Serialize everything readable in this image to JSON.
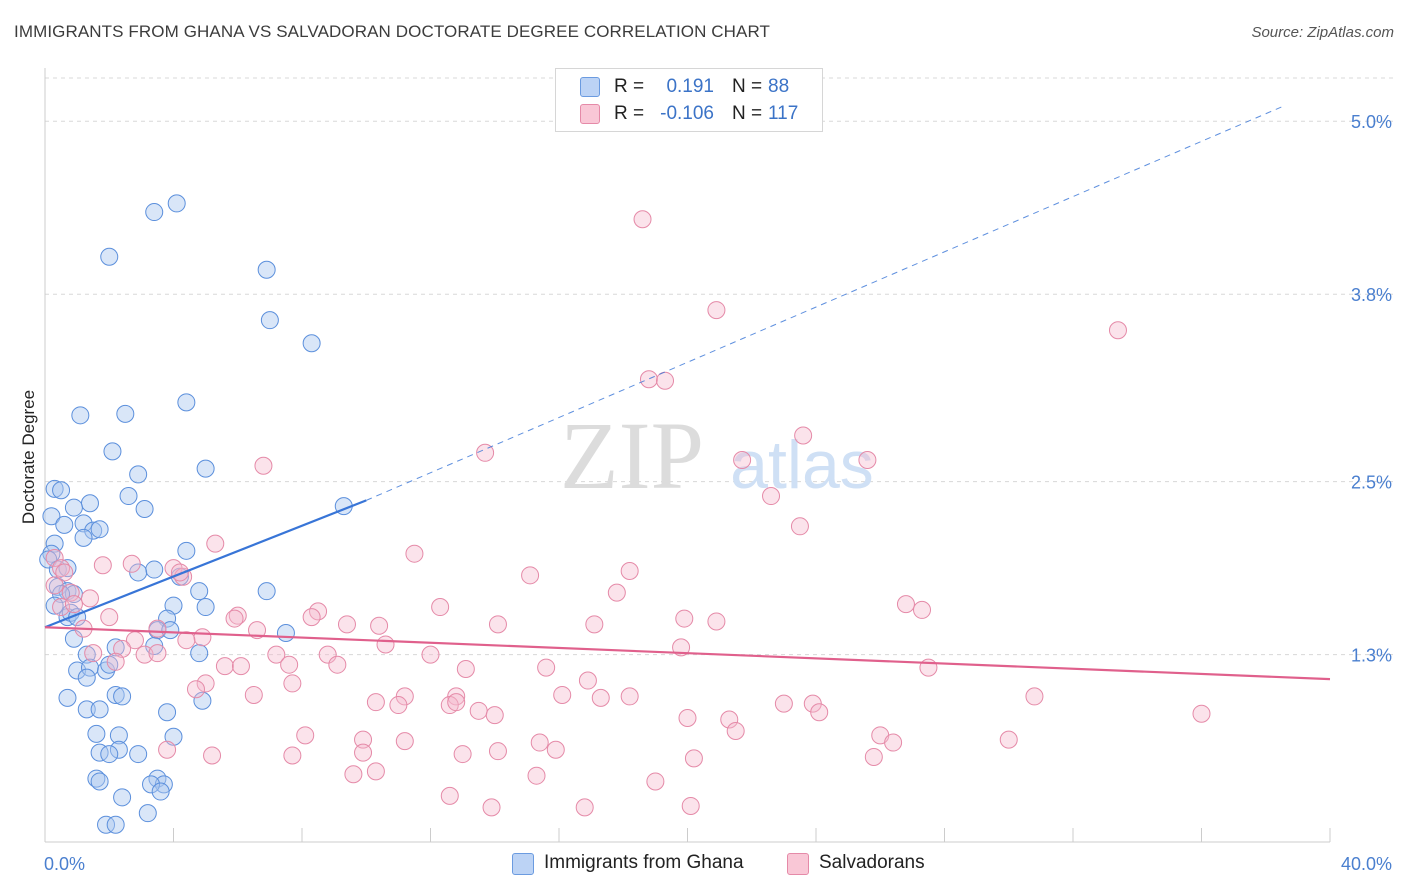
{
  "title": "IMMIGRANTS FROM GHANA VS SALVADORAN DOCTORATE DEGREE CORRELATION CHART",
  "source": "Source: ZipAtlas.com",
  "watermark": {
    "zip": "ZIP",
    "atlas": "atlas"
  },
  "legend": {
    "r_label": "R =",
    "n_label": "N =",
    "series": [
      {
        "name": "Immigrants from Ghana",
        "r": "0.191",
        "n": "88",
        "fill": "#bcd3f5",
        "stroke": "#6b9be0"
      },
      {
        "name": "Salvadorans",
        "r": "-0.106",
        "n": "117",
        "fill": "#f9c7d6",
        "stroke": "#e58aa8"
      }
    ]
  },
  "chart_data": {
    "type": "scatter",
    "title": "IMMIGRANTS FROM GHANA VS SALVADORAN DOCTORATE DEGREE CORRELATION CHART",
    "xlabel": "",
    "ylabel": "Doctorate Degree",
    "xlim": [
      0,
      40
    ],
    "ylim": [
      0,
      5.3
    ],
    "x_tick_labels": {
      "left": "0.0%",
      "right": "40.0%"
    },
    "y_ticks": [
      {
        "value": 1.3,
        "label": "1.3%"
      },
      {
        "value": 2.5,
        "label": "2.5%"
      },
      {
        "value": 3.8,
        "label": "3.8%"
      },
      {
        "value": 5.0,
        "label": "5.0%"
      }
    ],
    "colors": {
      "ghana": "#3875d7",
      "salvadoran": "#e0608c",
      "grid": "#d8d8d8"
    },
    "trendlines": [
      {
        "series": "Immigrants from Ghana",
        "x_solid": [
          0,
          10
        ],
        "y_solid": [
          1.49,
          2.37
        ],
        "x_dashed": [
          10,
          38.5
        ],
        "y_dashed": [
          2.37,
          5.1
        ]
      },
      {
        "series": "Salvadorans",
        "x": [
          0,
          40
        ],
        "y": [
          1.49,
          1.13
        ]
      }
    ],
    "series": [
      {
        "name": "Immigrants from Ghana",
        "points": [
          [
            4.1,
            4.43
          ],
          [
            3.4,
            4.37
          ],
          [
            2.0,
            4.06
          ],
          [
            6.9,
            3.97
          ],
          [
            7.0,
            3.62
          ],
          [
            8.3,
            3.46
          ],
          [
            1.1,
            2.96
          ],
          [
            2.5,
            2.97
          ],
          [
            4.4,
            3.05
          ],
          [
            2.1,
            2.71
          ],
          [
            5.0,
            2.59
          ],
          [
            2.9,
            2.55
          ],
          [
            0.3,
            2.45
          ],
          [
            0.5,
            2.44
          ],
          [
            2.6,
            2.4
          ],
          [
            1.4,
            2.35
          ],
          [
            0.2,
            2.26
          ],
          [
            0.9,
            2.32
          ],
          [
            3.1,
            2.31
          ],
          [
            9.3,
            2.33
          ],
          [
            1.2,
            2.21
          ],
          [
            0.6,
            2.2
          ],
          [
            1.5,
            2.16
          ],
          [
            1.7,
            2.17
          ],
          [
            1.2,
            2.11
          ],
          [
            0.3,
            2.07
          ],
          [
            0.2,
            2.0
          ],
          [
            4.4,
            2.02
          ],
          [
            0.1,
            1.96
          ],
          [
            0.4,
            1.89
          ],
          [
            0.7,
            1.9
          ],
          [
            3.4,
            1.89
          ],
          [
            2.9,
            1.87
          ],
          [
            4.2,
            1.84
          ],
          [
            0.4,
            1.77
          ],
          [
            0.7,
            1.74
          ],
          [
            0.9,
            1.72
          ],
          [
            0.5,
            1.72
          ],
          [
            6.9,
            1.74
          ],
          [
            4.8,
            1.74
          ],
          [
            0.3,
            1.64
          ],
          [
            4.0,
            1.64
          ],
          [
            5.0,
            1.63
          ],
          [
            0.7,
            1.56
          ],
          [
            0.8,
            1.59
          ],
          [
            1.0,
            1.56
          ],
          [
            3.8,
            1.55
          ],
          [
            3.5,
            1.47
          ],
          [
            3.9,
            1.47
          ],
          [
            7.5,
            1.45
          ],
          [
            0.9,
            1.41
          ],
          [
            2.2,
            1.35
          ],
          [
            3.4,
            1.36
          ],
          [
            1.3,
            1.3
          ],
          [
            4.8,
            1.31
          ],
          [
            1.0,
            1.19
          ],
          [
            1.4,
            1.21
          ],
          [
            1.9,
            1.19
          ],
          [
            2.0,
            1.23
          ],
          [
            1.3,
            1.14
          ],
          [
            0.7,
            1.0
          ],
          [
            2.2,
            1.02
          ],
          [
            2.4,
            1.01
          ],
          [
            4.9,
            0.98
          ],
          [
            1.3,
            0.92
          ],
          [
            1.7,
            0.92
          ],
          [
            3.8,
            0.9
          ],
          [
            1.6,
            0.75
          ],
          [
            2.3,
            0.74
          ],
          [
            4.0,
            0.73
          ],
          [
            1.7,
            0.62
          ],
          [
            2.3,
            0.64
          ],
          [
            2.9,
            0.61
          ],
          [
            2.0,
            0.61
          ],
          [
            1.6,
            0.44
          ],
          [
            1.7,
            0.42
          ],
          [
            3.5,
            0.44
          ],
          [
            3.7,
            0.4
          ],
          [
            3.3,
            0.4
          ],
          [
            3.6,
            0.35
          ],
          [
            2.4,
            0.31
          ],
          [
            3.2,
            0.2
          ],
          [
            1.9,
            0.12
          ],
          [
            2.2,
            0.12
          ]
        ]
      },
      {
        "name": "Salvadorans",
        "points": [
          [
            18.6,
            4.32
          ],
          [
            20.9,
            3.69
          ],
          [
            33.4,
            3.55
          ],
          [
            18.8,
            3.21
          ],
          [
            19.3,
            3.2
          ],
          [
            23.6,
            2.82
          ],
          [
            13.7,
            2.7
          ],
          [
            21.7,
            2.65
          ],
          [
            6.8,
            2.61
          ],
          [
            25.6,
            2.65
          ],
          [
            22.6,
            2.4
          ],
          [
            23.5,
            2.19
          ],
          [
            5.3,
            2.07
          ],
          [
            11.5,
            2.0
          ],
          [
            0.3,
            1.97
          ],
          [
            1.8,
            1.92
          ],
          [
            2.7,
            1.93
          ],
          [
            0.5,
            1.9
          ],
          [
            0.6,
            1.87
          ],
          [
            4.0,
            1.9
          ],
          [
            4.3,
            1.84
          ],
          [
            4.2,
            1.87
          ],
          [
            15.1,
            1.85
          ],
          [
            18.2,
            1.88
          ],
          [
            0.3,
            1.78
          ],
          [
            0.8,
            1.73
          ],
          [
            1.4,
            1.69
          ],
          [
            17.8,
            1.73
          ],
          [
            0.5,
            1.63
          ],
          [
            0.9,
            1.65
          ],
          [
            12.3,
            1.63
          ],
          [
            26.8,
            1.65
          ],
          [
            27.3,
            1.61
          ],
          [
            8.5,
            1.6
          ],
          [
            8.3,
            1.56
          ],
          [
            6.0,
            1.57
          ],
          [
            5.9,
            1.55
          ],
          [
            2.0,
            1.56
          ],
          [
            19.9,
            1.55
          ],
          [
            20.9,
            1.53
          ],
          [
            9.4,
            1.51
          ],
          [
            10.4,
            1.5
          ],
          [
            14.1,
            1.51
          ],
          [
            17.1,
            1.51
          ],
          [
            1.2,
            1.48
          ],
          [
            3.5,
            1.48
          ],
          [
            6.6,
            1.47
          ],
          [
            4.9,
            1.42
          ],
          [
            4.4,
            1.4
          ],
          [
            2.8,
            1.4
          ],
          [
            10.6,
            1.37
          ],
          [
            19.8,
            1.35
          ],
          [
            1.5,
            1.31
          ],
          [
            3.1,
            1.3
          ],
          [
            7.2,
            1.3
          ],
          [
            8.8,
            1.3
          ],
          [
            12.0,
            1.3
          ],
          [
            2.4,
            1.34
          ],
          [
            5.6,
            1.22
          ],
          [
            6.1,
            1.22
          ],
          [
            7.6,
            1.23
          ],
          [
            9.1,
            1.23
          ],
          [
            3.5,
            1.31
          ],
          [
            2.2,
            1.25
          ],
          [
            13.1,
            1.2
          ],
          [
            15.6,
            1.21
          ],
          [
            27.5,
            1.21
          ],
          [
            16.9,
            1.12
          ],
          [
            5.0,
            1.1
          ],
          [
            4.7,
            1.06
          ],
          [
            6.5,
            1.02
          ],
          [
            7.7,
            1.1
          ],
          [
            11.2,
            1.01
          ],
          [
            12.8,
            1.01
          ],
          [
            16.1,
            1.02
          ],
          [
            17.3,
            1.0
          ],
          [
            18.2,
            1.01
          ],
          [
            10.3,
            0.97
          ],
          [
            11.0,
            0.95
          ],
          [
            12.6,
            0.95
          ],
          [
            13.5,
            0.91
          ],
          [
            14.0,
            0.88
          ],
          [
            23.0,
            0.96
          ],
          [
            23.9,
            0.96
          ],
          [
            24.1,
            0.9
          ],
          [
            30.8,
            1.01
          ],
          [
            36.0,
            0.89
          ],
          [
            12.8,
            0.97
          ],
          [
            20.0,
            0.86
          ],
          [
            21.3,
            0.85
          ],
          [
            8.1,
            0.74
          ],
          [
            9.9,
            0.71
          ],
          [
            11.2,
            0.7
          ],
          [
            15.4,
            0.69
          ],
          [
            21.5,
            0.77
          ],
          [
            26.0,
            0.74
          ],
          [
            26.4,
            0.69
          ],
          [
            30.0,
            0.71
          ],
          [
            3.8,
            0.64
          ],
          [
            5.2,
            0.6
          ],
          [
            7.7,
            0.6
          ],
          [
            9.9,
            0.62
          ],
          [
            13.0,
            0.61
          ],
          [
            14.1,
            0.63
          ],
          [
            15.9,
            0.64
          ],
          [
            20.2,
            0.58
          ],
          [
            25.8,
            0.59
          ],
          [
            9.6,
            0.47
          ],
          [
            10.3,
            0.49
          ],
          [
            15.3,
            0.46
          ],
          [
            19.0,
            0.42
          ],
          [
            12.6,
            0.32
          ],
          [
            13.9,
            0.24
          ],
          [
            16.8,
            0.24
          ],
          [
            20.1,
            0.25
          ]
        ]
      }
    ]
  }
}
